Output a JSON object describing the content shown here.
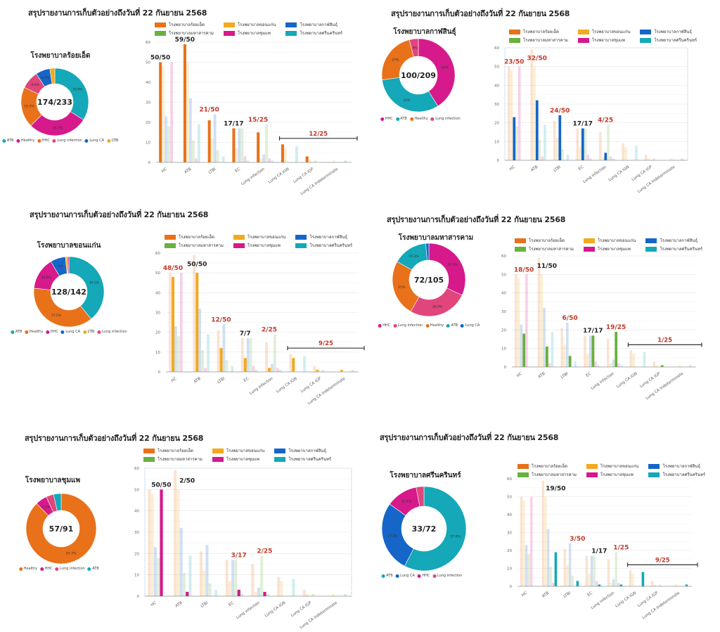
{
  "page_title": "สรุปรายงานการเก็บตัวอย่างถึงวันที่ 22 กันยายน 2568",
  "colors": {
    "roiet": "#E8711A",
    "khonkaen": "#F2A91E",
    "kalasin": "#1566C8",
    "mahasarakham": "#6AB03E",
    "chumphae": "#D6198B",
    "srinagarind": "#14A8B8",
    "label_red": "#C0392B",
    "label_black": "#222222"
  },
  "hospitals": [
    {
      "key": "roiet",
      "name": "โรงพยาบาลร้อยเอ็ด"
    },
    {
      "key": "khonkaen",
      "name": "โรงพยาบาลขอนแก่น"
    },
    {
      "key": "kalasin",
      "name": "โรงพยาบาลกาฬสินธุ์"
    },
    {
      "key": "mahasarakham",
      "name": "โรงพยาบาลมหาสารคาม"
    },
    {
      "key": "chumphae",
      "name": "โรงพยาบาลชุมแพ"
    },
    {
      "key": "srinagarind",
      "name": "โรงพยาบาลศรีนครินทร์"
    }
  ],
  "chart_data": [
    {
      "panel": "roiet",
      "title": "สรุปรายงานการเก็บตัวอย่างถึงวันที่ 22 กันยายน 2568",
      "donut": {
        "type": "pie",
        "title": "โรงพยาบาลร้อยเอ็ด",
        "center_label": "174/233",
        "slices": [
          {
            "label": "ATB",
            "value": 33.9,
            "color": "#14A8B8"
          },
          {
            "label": "Healthy",
            "value": 28.7,
            "color": "#D6198B"
          },
          {
            "label": "HHC",
            "value": 19.5,
            "color": "#E8711A"
          },
          {
            "label": "Lung infection",
            "value": 8.6,
            "color": "#E0457B"
          },
          {
            "label": "Lung CA",
            "value": 6.9,
            "color": "#1566C8"
          },
          {
            "label": "LTBI",
            "value": 2.4,
            "color": "#F2A91E"
          }
        ]
      },
      "bars": {
        "type": "bar",
        "highlight": "roiet",
        "ylim": [
          0,
          60
        ],
        "yticks": [
          0,
          10,
          20,
          30,
          40,
          50,
          60
        ],
        "annotations": [
          {
            "category": "HC",
            "text": "50/50",
            "color": "black"
          },
          {
            "category": "ATB",
            "text": "59/50",
            "color": "black"
          },
          {
            "category": "LTBI",
            "text": "21/50",
            "color": "red"
          },
          {
            "category": "EC",
            "text": "17/17",
            "color": "black"
          },
          {
            "category": "Lung infection",
            "text": "15/25",
            "color": "red"
          }
        ],
        "bracket": {
          "from": "Lung CA IGN",
          "to": "Lung CA Indeterminate",
          "text": "12/25",
          "color": "red"
        }
      }
    },
    {
      "panel": "kalasin",
      "title": "สรุปรายงานการเก็บตัวอย่างถึงวันที่ 22 กันยายน 2568",
      "donut": {
        "type": "pie",
        "title": "โรงพยาบาลกาฬสินธุ์",
        "center_label": "100/209",
        "slices": [
          {
            "label": "HHC",
            "value": 41,
            "color": "#D6198B"
          },
          {
            "label": "ATB",
            "value": 32,
            "color": "#14A8B8"
          },
          {
            "label": "Healthy",
            "value": 23,
            "color": "#E8711A"
          },
          {
            "label": "Lung infection",
            "value": 4,
            "color": "#E0457B"
          }
        ]
      },
      "bars": {
        "type": "bar",
        "highlight": "kalasin",
        "ylim": [
          0,
          60
        ],
        "yticks": [
          0,
          10,
          20,
          30,
          40,
          50,
          60
        ],
        "annotations": [
          {
            "category": "HC",
            "text": "23/50",
            "color": "red"
          },
          {
            "category": "ATB",
            "text": "32/50",
            "color": "red"
          },
          {
            "category": "LTBI",
            "text": "24/50",
            "color": "red"
          },
          {
            "category": "EC",
            "text": "17/17",
            "color": "black"
          },
          {
            "category": "Lung infection",
            "text": "4/25",
            "color": "red"
          }
        ],
        "bracket": null
      }
    },
    {
      "panel": "khonkaen",
      "title": "สรุปรายงานการเก็บตัวอย่างถึงวันที่ 22 กันยายน 2568",
      "donut": {
        "type": "pie",
        "title": "โรงพยาบาลขอนแก่น",
        "center_label": "128/142",
        "slices": [
          {
            "label": "ATB",
            "value": 39.1,
            "color": "#14A8B8"
          },
          {
            "label": "Healthy",
            "value": 37.5,
            "color": "#E8711A"
          },
          {
            "label": "HHC",
            "value": 14.8,
            "color": "#D6198B"
          },
          {
            "label": "Lung CA",
            "value": 7,
            "color": "#1566C8"
          },
          {
            "label": "LTBI",
            "value": 0.8,
            "color": "#F2A91E"
          },
          {
            "label": "Lung infection",
            "value": 0.8,
            "color": "#E0457B"
          }
        ]
      },
      "bars": {
        "type": "bar",
        "highlight": "khonkaen",
        "ylim": [
          0,
          60
        ],
        "yticks": [
          0,
          10,
          20,
          30,
          40,
          50,
          60
        ],
        "annotations": [
          {
            "category": "HC",
            "text": "48/50",
            "color": "red"
          },
          {
            "category": "ATB",
            "text": "50/50",
            "color": "black"
          },
          {
            "category": "LTBI",
            "text": "12/50",
            "color": "red"
          },
          {
            "category": "EC",
            "text": "7/7",
            "color": "black"
          },
          {
            "category": "Lung infection",
            "text": "2/25",
            "color": "red"
          }
        ],
        "bracket": {
          "from": "Lung CA IGN",
          "to": "Lung CA Indeterminate",
          "text": "9/25",
          "color": "red"
        }
      }
    },
    {
      "panel": "mahasarakham",
      "title": "สรุปรายงานการเก็บตัวอย่างถึงวันที่ 22 กันยายน 2568",
      "donut": {
        "type": "pie",
        "title": "โรงพยาบาลมหาสารคาม",
        "center_label": "72/105",
        "slices": [
          {
            "label": "HHC",
            "value": 31.9,
            "color": "#D6198B"
          },
          {
            "label": "Lung infection",
            "value": 26.4,
            "color": "#E0457B"
          },
          {
            "label": "Healthy",
            "value": 25,
            "color": "#E8711A"
          },
          {
            "label": "ATB",
            "value": 15.3,
            "color": "#14A8B8"
          },
          {
            "label": "Lung CA",
            "value": 1.4,
            "color": "#1566C8"
          }
        ]
      },
      "bars": {
        "type": "bar",
        "highlight": "mahasarakham",
        "ylim": [
          0,
          60
        ],
        "yticks": [
          0,
          10,
          20,
          30,
          40,
          50,
          60
        ],
        "annotations": [
          {
            "category": "HC",
            "text": "18/50",
            "color": "red"
          },
          {
            "category": "ATB",
            "text": "11/50",
            "color": "black"
          },
          {
            "category": "LTBI",
            "text": "6/50",
            "color": "red"
          },
          {
            "category": "EC",
            "text": "17/17",
            "color": "black"
          },
          {
            "category": "Lung infection",
            "text": "19/25",
            "color": "red"
          }
        ],
        "bracket": {
          "from": "Lung CA IGN",
          "to": "Lung CA Indeterminate",
          "text": "1/25",
          "color": "red"
        }
      }
    },
    {
      "panel": "chumphae",
      "title": "สรุปรายงานการเก็บตัวอย่างถึงวันที่ 22 กันยายน 2568",
      "donut": {
        "type": "pie",
        "title": "โรงพยาบาลชุมแพ",
        "center_label": "57/91",
        "slices": [
          {
            "label": "Healthy",
            "value": 87.7,
            "color": "#E8711A"
          },
          {
            "label": "HHC",
            "value": 5.3,
            "color": "#D6198B"
          },
          {
            "label": "Lung infection",
            "value": 3.5,
            "color": "#E0457B"
          },
          {
            "label": "ATB",
            "value": 3.5,
            "color": "#14A8B8"
          }
        ]
      },
      "bars": {
        "type": "bar",
        "highlight": "chumphae",
        "ylim": [
          0,
          60
        ],
        "yticks": [
          0,
          10,
          20,
          30,
          40,
          50,
          60
        ],
        "annotations": [
          {
            "category": "HC",
            "text": "50/50",
            "color": "black"
          },
          {
            "category": "ATB",
            "text": "2/50",
            "color": "black"
          },
          {
            "category": "EC",
            "text": "3/17",
            "color": "red"
          },
          {
            "category": "Lung infection",
            "text": "2/25",
            "color": "red"
          }
        ],
        "bracket": null
      }
    },
    {
      "panel": "srinagarind",
      "title": "สรุปรายงานการเก็บตัวอย่างถึงวันที่ 22 กันยายน 2568",
      "donut": {
        "type": "pie",
        "title": "โรงพยาบาลศรีนครินทร์",
        "center_label": "33/72",
        "slices": [
          {
            "label": "ATB",
            "value": 57.6,
            "color": "#14A8B8"
          },
          {
            "label": "Lung CA",
            "value": 27.3,
            "color": "#1566C8"
          },
          {
            "label": "HHC",
            "value": 12.1,
            "color": "#D6198B"
          },
          {
            "label": "Lung infection",
            "value": 3,
            "color": "#E0457B"
          }
        ]
      },
      "bars": {
        "type": "bar",
        "highlight": "srinagarind",
        "ylim": [
          0,
          60
        ],
        "yticks": [
          0,
          10,
          20,
          30,
          40,
          50,
          60
        ],
        "annotations": [
          {
            "category": "ATB",
            "text": "19/50",
            "color": "black"
          },
          {
            "category": "LTBI",
            "text": "3/50",
            "color": "red"
          },
          {
            "category": "EC",
            "text": "1/17",
            "color": "black"
          },
          {
            "category": "Lung infection",
            "text": "1/25",
            "color": "red"
          }
        ],
        "bracket": {
          "from": "Lung CA IGN",
          "to": "Lung CA Indeterminate",
          "text": "9/25",
          "color": "red"
        }
      }
    }
  ],
  "shared_bar_data": {
    "categories": [
      "HC",
      "ATB",
      "LTBI",
      "EC",
      "Lung infection",
      "Lung CA IGN",
      "Lung CA IGP",
      "Lung CA Indeterminate"
    ],
    "series": [
      {
        "key": "roiet",
        "name": "โรงพยาบาลร้อยเอ็ด",
        "values": [
          50,
          59,
          21,
          17,
          15,
          9,
          3,
          0
        ]
      },
      {
        "key": "khonkaen",
        "name": "โรงพยาบาลขอนแก่น",
        "values": [
          48,
          50,
          12,
          7,
          2,
          7,
          1,
          1
        ]
      },
      {
        "key": "kalasin",
        "name": "โรงพยาบาลกาฬสินธุ์",
        "values": [
          23,
          32,
          24,
          17,
          4,
          0,
          0,
          0
        ]
      },
      {
        "key": "mahasarakham",
        "name": "โรงพยาบาลมหาสารคาม",
        "values": [
          18,
          11,
          6,
          17,
          19,
          0,
          1,
          0
        ]
      },
      {
        "key": "chumphae",
        "name": "โรงพยาบาลชุมแพ",
        "values": [
          50,
          2,
          0,
          3,
          2,
          0,
          0,
          0
        ]
      },
      {
        "key": "srinagarind",
        "name": "โรงพยาบาลศรีนครินทร์",
        "values": [
          0,
          19,
          3,
          1,
          1,
          8,
          0,
          1
        ]
      }
    ]
  }
}
